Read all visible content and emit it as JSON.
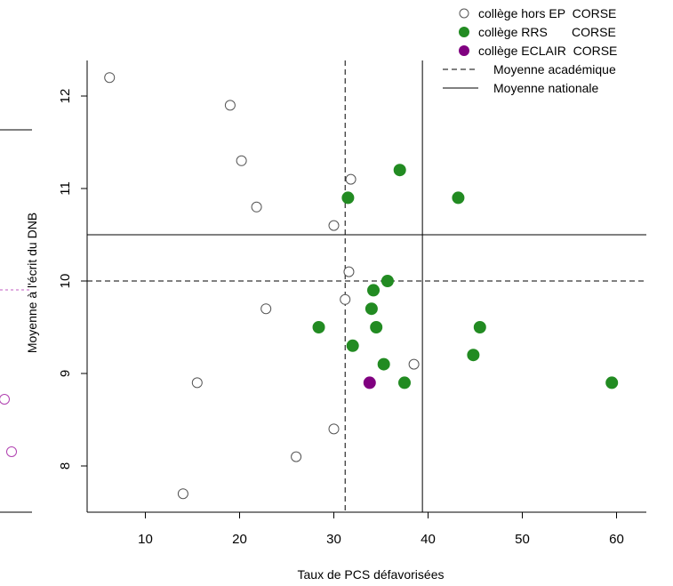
{
  "chart_data": {
    "type": "scatter",
    "title": "",
    "xlabel": "Taux de PCS défavorisées",
    "ylabel": "Moyenne à l'écrit du DNB",
    "xlim": [
      4,
      62
    ],
    "ylim": [
      7.5,
      12.4
    ],
    "xticks": [
      10,
      20,
      30,
      40,
      50,
      60
    ],
    "yticks": [
      8,
      9,
      10,
      11,
      12
    ],
    "grid": false,
    "legend_position": "top-right",
    "reference_lines": {
      "academic_mean": {
        "label": "Moyenne académique",
        "style": "dashed",
        "x": 31.2,
        "y": 10.0
      },
      "national_mean": {
        "label": "Moyenne nationale",
        "style": "solid",
        "x": 39.4,
        "y": 10.5
      }
    },
    "series": [
      {
        "name": "collège hors EP  CORSE",
        "marker": "open-circle",
        "color": "#555555",
        "points": [
          {
            "x": 6.2,
            "y": 12.2
          },
          {
            "x": 19.0,
            "y": 11.9
          },
          {
            "x": 20.2,
            "y": 11.3
          },
          {
            "x": 21.8,
            "y": 10.8
          },
          {
            "x": 31.8,
            "y": 11.1
          },
          {
            "x": 30.0,
            "y": 10.6
          },
          {
            "x": 31.6,
            "y": 10.1
          },
          {
            "x": 22.8,
            "y": 9.7
          },
          {
            "x": 31.2,
            "y": 9.8
          },
          {
            "x": 15.5,
            "y": 8.9
          },
          {
            "x": 38.5,
            "y": 9.1
          },
          {
            "x": 30.0,
            "y": 8.4
          },
          {
            "x": 26.0,
            "y": 8.1
          },
          {
            "x": 14.0,
            "y": 7.7
          }
        ]
      },
      {
        "name": "collège RRS       CORSE",
        "marker": "filled-circle",
        "color": "#228B22",
        "points": [
          {
            "x": 37.0,
            "y": 11.2
          },
          {
            "x": 31.5,
            "y": 10.9
          },
          {
            "x": 43.2,
            "y": 10.9
          },
          {
            "x": 35.7,
            "y": 10.0
          },
          {
            "x": 34.2,
            "y": 9.9
          },
          {
            "x": 34.0,
            "y": 9.7
          },
          {
            "x": 28.4,
            "y": 9.5
          },
          {
            "x": 34.5,
            "y": 9.5
          },
          {
            "x": 45.5,
            "y": 9.5
          },
          {
            "x": 32.0,
            "y": 9.3
          },
          {
            "x": 44.8,
            "y": 9.2
          },
          {
            "x": 35.3,
            "y": 9.1
          },
          {
            "x": 37.5,
            "y": 8.9
          },
          {
            "x": 59.5,
            "y": 8.9
          }
        ]
      },
      {
        "name": "collège ECLAIR  CORSE",
        "marker": "filled-circle",
        "color": "#800080",
        "points": [
          {
            "x": 33.8,
            "y": 8.9
          }
        ]
      }
    ]
  }
}
